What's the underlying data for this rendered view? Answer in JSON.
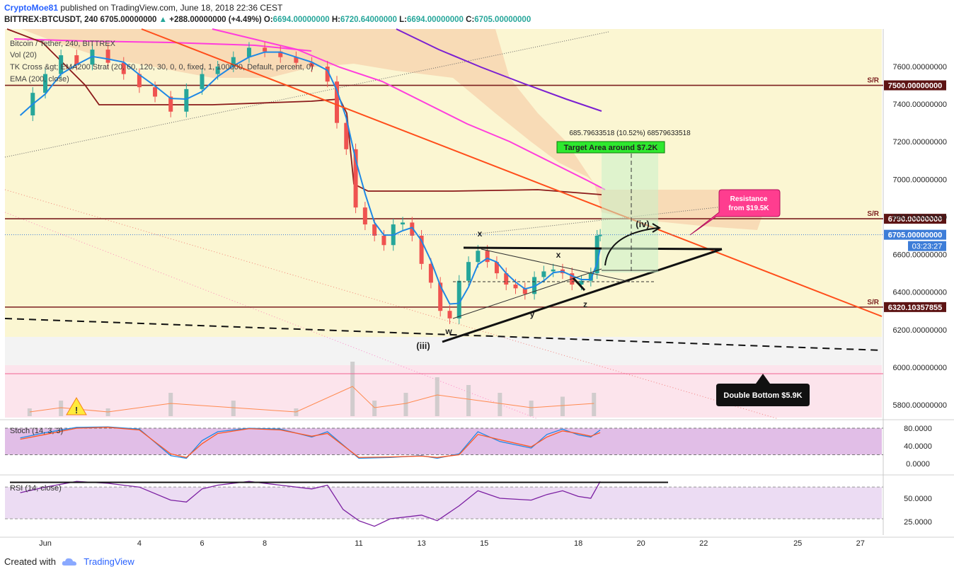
{
  "header": {
    "author": "CryptoMoe81",
    "published_text": "published on TradingView.com, June 18, 2018 22:36 CEST",
    "symbol_line": "BITTREX:BTCUSDT, 240",
    "price": "6705.00000000",
    "change": "+288.00000000 (+4.49%)",
    "open_label": "O:",
    "open": "6694.00000000",
    "high_label": "H:",
    "high": "6720.64000000",
    "low_label": "L:",
    "low": "6694.00000000",
    "close_label": "C:",
    "close": "6705.00000000"
  },
  "studies": {
    "main_title": "Bitcoin / Tether, 240, BITTREX",
    "volume": "Vol (20)",
    "tk_cross": "TK Cross &gt; EMA200 Strat (20, 60, 120, 30, 0, 0, fixed, 1, 100000, Default, percent, 0)",
    "ema": "EMA (200, close)",
    "stoch": "Stoch (14, 3, 3)",
    "rsi": "RSI (14, close)"
  },
  "footer": {
    "created_with": "Created with",
    "brand": "TradingView"
  },
  "colors": {
    "main_bg": "#fbf6d2",
    "volume_bg": "#fce4ec",
    "osc_bg": "#e1bee7",
    "sr_line": "#7b1f1f",
    "trend": "#ff4d1a",
    "kijun": "#8b1a1a",
    "tenkan": "#1e88e5",
    "ema": "#ff3ddc",
    "ema200": "#7b1fd1",
    "bull": "#26a69a",
    "bear": "#ef5350",
    "cloud": "#f6c9a3",
    "price_tag": "#3d7dd8"
  },
  "chart_data": [
    {
      "type": "candlestick",
      "panel": "price",
      "y_axis_ticks": [
        7600,
        7400,
        7200,
        7000,
        6800,
        6600,
        6400,
        6200,
        6000,
        5800
      ],
      "y_tick_labels": [
        "7600.00000000",
        "7400.00000000",
        "7200.00000000",
        "7000.00000000",
        "6800.00000000",
        "6600.00000000",
        "6400.00000000",
        "6200.00000000",
        "6000.00000000",
        "5800.00000000"
      ],
      "ylim": [
        5670,
        7870
      ],
      "x_ticks": [
        {
          "label": "Jun",
          "day": 1
        },
        {
          "label": "4",
          "day": 4
        },
        {
          "label": "6",
          "day": 6
        },
        {
          "label": "8",
          "day": 8
        },
        {
          "label": "11",
          "day": 11
        },
        {
          "label": "13",
          "day": 13
        },
        {
          "label": "15",
          "day": 15
        },
        {
          "label": "18",
          "day": 18
        },
        {
          "label": "20",
          "day": 20
        },
        {
          "label": "22",
          "day": 22
        },
        {
          "label": "25",
          "day": 25
        },
        {
          "label": "27",
          "day": 27
        }
      ],
      "price_path": [
        [
          0.2,
          7340
        ],
        [
          0.6,
          7460
        ],
        [
          1.0,
          7560
        ],
        [
          1.5,
          7660
        ],
        [
          2.0,
          7610
        ],
        [
          2.5,
          7690
        ],
        [
          3.0,
          7620
        ],
        [
          3.5,
          7560
        ],
        [
          4.0,
          7490
        ],
        [
          4.5,
          7440
        ],
        [
          5.0,
          7360
        ],
        [
          5.5,
          7480
        ],
        [
          6.0,
          7560
        ],
        [
          6.5,
          7600
        ],
        [
          7.0,
          7650
        ],
        [
          7.5,
          7700
        ],
        [
          8.0,
          7680
        ],
        [
          8.5,
          7650
        ],
        [
          9.0,
          7620
        ],
        [
          9.5,
          7600
        ],
        [
          10.0,
          7520
        ],
        [
          10.3,
          7300
        ],
        [
          10.6,
          7160
        ],
        [
          10.9,
          6850
        ],
        [
          11.2,
          6760
        ],
        [
          11.5,
          6700
        ],
        [
          11.8,
          6650
        ],
        [
          12.1,
          6760
        ],
        [
          12.4,
          6770
        ],
        [
          12.7,
          6700
        ],
        [
          13.0,
          6550
        ],
        [
          13.3,
          6450
        ],
        [
          13.6,
          6300
        ],
        [
          13.9,
          6260
        ],
        [
          14.2,
          6460
        ],
        [
          14.5,
          6560
        ],
        [
          14.8,
          6620
        ],
        [
          15.1,
          6560
        ],
        [
          15.4,
          6500
        ],
        [
          15.7,
          6440
        ],
        [
          16.0,
          6420
        ],
        [
          16.3,
          6390
        ],
        [
          16.6,
          6480
        ],
        [
          16.9,
          6510
        ],
        [
          17.2,
          6520
        ],
        [
          17.5,
          6500
        ],
        [
          17.8,
          6440
        ],
        [
          18.1,
          6460
        ],
        [
          18.4,
          6500
        ],
        [
          18.6,
          6700
        ],
        [
          18.7,
          6705
        ]
      ],
      "volume_path": [
        [
          0.5,
          5780
        ],
        [
          1.5,
          5790
        ],
        [
          3,
          5780
        ],
        [
          5,
          5800
        ],
        [
          7,
          5790
        ],
        [
          9,
          5780
        ],
        [
          10.8,
          5840
        ],
        [
          11.5,
          5790
        ],
        [
          12.5,
          5800
        ],
        [
          13.5,
          5820
        ],
        [
          14.5,
          5810
        ],
        [
          15.5,
          5800
        ],
        [
          16.5,
          5790
        ],
        [
          17.5,
          5795
        ],
        [
          18.5,
          5800
        ]
      ],
      "sr_levels": [
        {
          "price": 7500,
          "label": "7500.00000000",
          "tag": "S/R"
        },
        {
          "price": 6790,
          "label": "6790.00000000",
          "tag": "S/R"
        },
        {
          "price": 6320.10357855,
          "label": "6320.10357855",
          "tag": "S/R"
        }
      ],
      "last_price": {
        "value": 6705,
        "label": "6705.00000000",
        "countdown": "03:23:27"
      },
      "annotations": {
        "target_area": "Target Area around $7.2K",
        "measure": "685.79633518 (10.52%) 68579633518",
        "resistance_line1": "Resistance",
        "resistance_line2": "from $19.5K",
        "double_bottom": "Double Bottom $5.9K",
        "wave_iii": "(iii)",
        "wave_iv": "(iv)",
        "w": "w",
        "x1": "x",
        "x2": "x",
        "y": "y",
        "z": "z"
      }
    },
    {
      "type": "line",
      "panel": "stoch",
      "title": "Stoch (14, 3, 3)",
      "y_ticks": [
        80,
        40,
        0
      ],
      "y_tick_labels": [
        "80.0000",
        "40.0000",
        "0.0000"
      ],
      "ylim": [
        0,
        90
      ],
      "k_path": [
        [
          0.2,
          58
        ],
        [
          1,
          70
        ],
        [
          2,
          82
        ],
        [
          3,
          83
        ],
        [
          4,
          78
        ],
        [
          5,
          18
        ],
        [
          5.5,
          12
        ],
        [
          6,
          52
        ],
        [
          6.5,
          72
        ],
        [
          7.5,
          80
        ],
        [
          8.5,
          78
        ],
        [
          9.5,
          60
        ],
        [
          10,
          72
        ],
        [
          11,
          12
        ],
        [
          12,
          14
        ],
        [
          13,
          18
        ],
        [
          13.5,
          12
        ],
        [
          14.2,
          22
        ],
        [
          14.8,
          72
        ],
        [
          15.5,
          50
        ],
        [
          16.5,
          35
        ],
        [
          17,
          66
        ],
        [
          17.5,
          78
        ],
        [
          18,
          65
        ],
        [
          18.4,
          60
        ],
        [
          18.7,
          76
        ]
      ],
      "d_path": [
        [
          0.2,
          55
        ],
        [
          1,
          66
        ],
        [
          2,
          80
        ],
        [
          3,
          82
        ],
        [
          4,
          76
        ],
        [
          5,
          22
        ],
        [
          5.5,
          14
        ],
        [
          6,
          45
        ],
        [
          6.5,
          68
        ],
        [
          7.5,
          79
        ],
        [
          8.5,
          76
        ],
        [
          9.5,
          62
        ],
        [
          10,
          68
        ],
        [
          11,
          14
        ],
        [
          12,
          15
        ],
        [
          13,
          17
        ],
        [
          13.5,
          14
        ],
        [
          14.2,
          20
        ],
        [
          14.8,
          66
        ],
        [
          15.5,
          54
        ],
        [
          16.5,
          38
        ],
        [
          17,
          60
        ],
        [
          17.5,
          74
        ],
        [
          18,
          68
        ],
        [
          18.4,
          62
        ],
        [
          18.7,
          70
        ]
      ]
    },
    {
      "type": "line",
      "panel": "rsi",
      "title": "RSI (14, close)",
      "y_ticks": [
        50,
        25
      ],
      "y_tick_labels": [
        "50.0000",
        "25.0000"
      ],
      "ylim": [
        10,
        80
      ],
      "path": [
        [
          0.2,
          56
        ],
        [
          1,
          62
        ],
        [
          2,
          68
        ],
        [
          3,
          66
        ],
        [
          4,
          62
        ],
        [
          5,
          48
        ],
        [
          5.5,
          46
        ],
        [
          6,
          60
        ],
        [
          6.5,
          64
        ],
        [
          7.5,
          68
        ],
        [
          8.5,
          64
        ],
        [
          9.5,
          60
        ],
        [
          10,
          64
        ],
        [
          10.5,
          38
        ],
        [
          11,
          26
        ],
        [
          11.5,
          20
        ],
        [
          12,
          28
        ],
        [
          13,
          32
        ],
        [
          13.5,
          26
        ],
        [
          14.2,
          42
        ],
        [
          14.8,
          58
        ],
        [
          15.5,
          50
        ],
        [
          16.5,
          48
        ],
        [
          17,
          54
        ],
        [
          17.5,
          58
        ],
        [
          18,
          52
        ],
        [
          18.4,
          50
        ],
        [
          18.7,
          68
        ]
      ],
      "horizontal_line": 67
    }
  ]
}
